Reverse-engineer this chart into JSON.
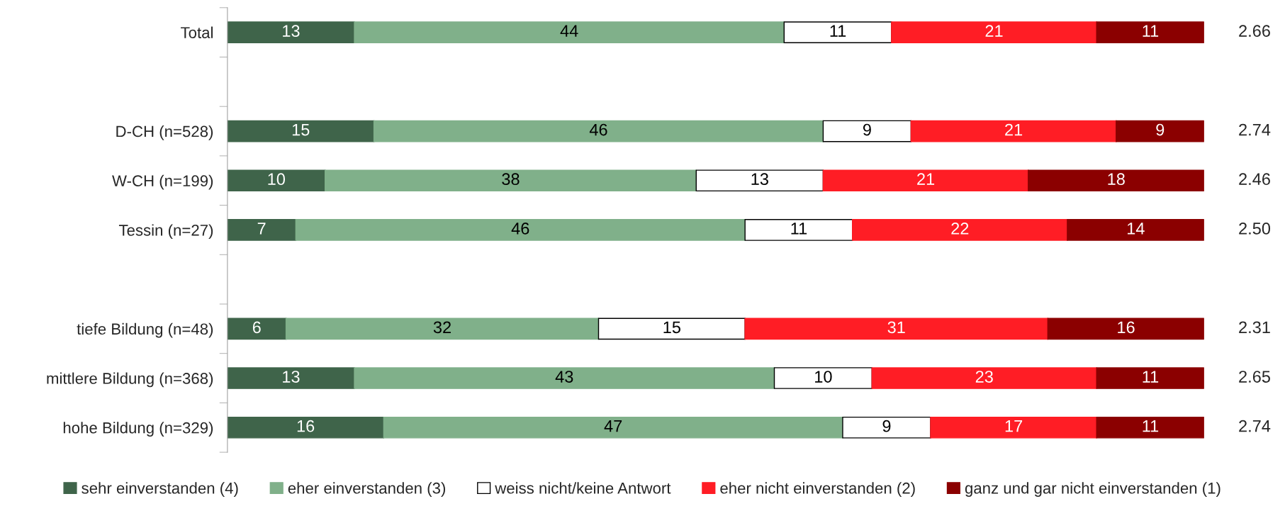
{
  "chart_data": {
    "type": "bar",
    "orientation": "horizontal",
    "stacked": true,
    "data_labels": true,
    "legend": "bottom",
    "categories": [
      "Total",
      null,
      "D-CH (n=528)",
      "W-CH (n=199)",
      "Tessin (n=27)",
      null,
      "tiefe Bildung (n=48)",
      "mittlere Bildung (n=368)",
      "hohe Bildung (n=329)"
    ],
    "series": [
      {
        "name": "sehr einverstanden (4)",
        "color": "#3f644a",
        "values": [
          13,
          null,
          15,
          10,
          7,
          null,
          6,
          13,
          16
        ]
      },
      {
        "name": "eher einverstanden (3)",
        "color": "#80b08a",
        "values": [
          44,
          null,
          46,
          38,
          46,
          null,
          32,
          43,
          47
        ]
      },
      {
        "name": "weiss nicht/keine Antwort",
        "color": "#ffffff",
        "values": [
          11,
          null,
          9,
          13,
          11,
          null,
          15,
          10,
          9
        ]
      },
      {
        "name": "eher nicht einverstanden (2)",
        "color": "#ff1d25",
        "values": [
          21,
          null,
          21,
          21,
          22,
          null,
          31,
          23,
          17
        ]
      },
      {
        "name": "ganz und gar nicht einverstanden (1)",
        "color": "#8b0000",
        "values": [
          11,
          null,
          9,
          18,
          14,
          null,
          16,
          11,
          11
        ]
      }
    ],
    "annotations": [
      "2.66",
      "2.74",
      "2.46",
      "2.50",
      "2.31",
      "2.65",
      "2.74"
    ]
  }
}
